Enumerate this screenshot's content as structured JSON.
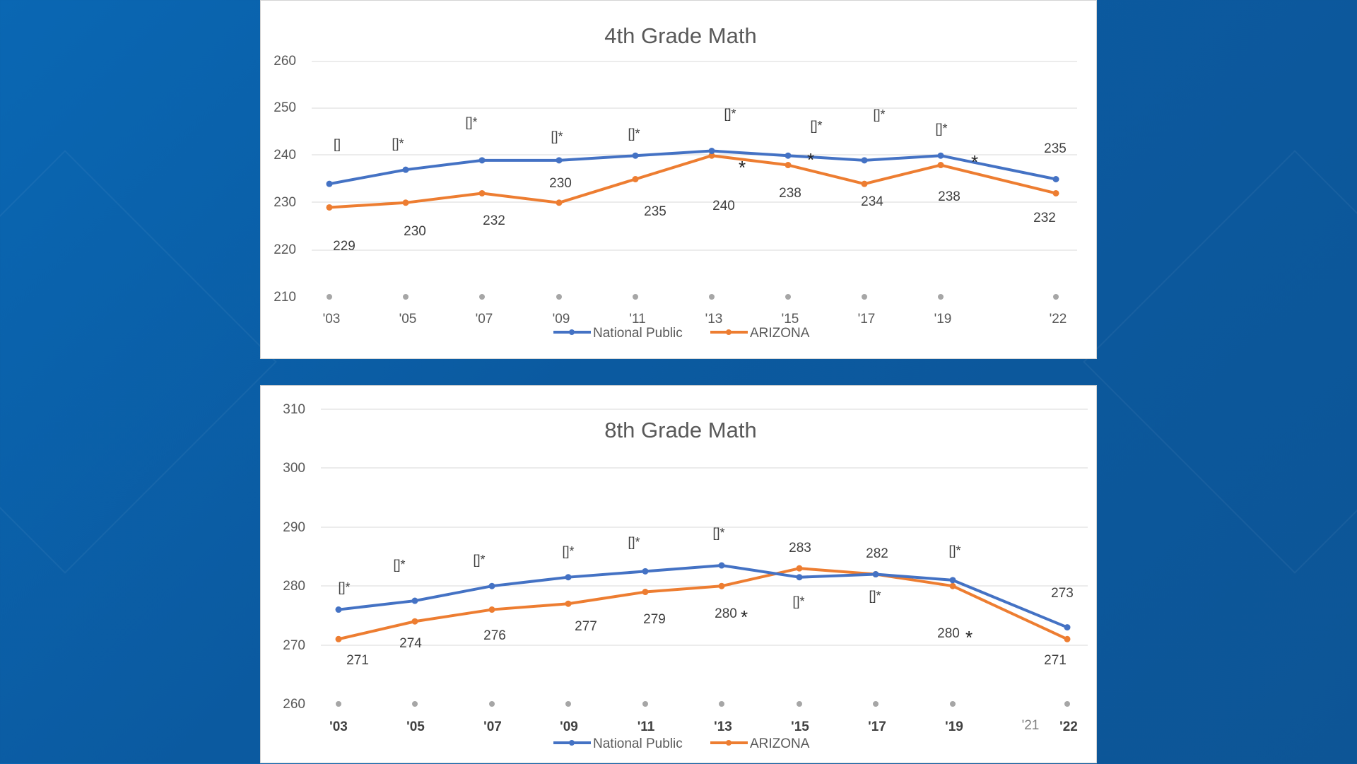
{
  "colors": {
    "national": "#4472c4",
    "arizona": "#ed7d31",
    "axis_text": "#595959",
    "grid": "#d9d9d9",
    "title": "#595959"
  },
  "chart_data": [
    {
      "type": "line",
      "title": "4th Grade Math",
      "x": [
        "'03",
        "'05",
        "'07",
        "'09",
        "'11",
        "'13",
        "'15",
        "'17",
        "'19",
        "'22"
      ],
      "y_ticks": [
        "260",
        "250",
        "240",
        "230",
        "220",
        "210"
      ],
      "ylim": [
        210,
        260
      ],
      "series": [
        {
          "name": "National Public",
          "values": [
            234,
            237,
            239,
            239,
            240,
            241,
            240,
            239,
            240,
            235
          ]
        },
        {
          "name": "ARIZONA",
          "values": [
            229,
            230,
            232,
            230,
            235,
            240,
            238,
            234,
            238,
            232
          ]
        }
      ],
      "data_labels": [
        "229",
        "230",
        "232",
        "230",
        "235",
        "240",
        "238",
        "234",
        "238",
        "232",
        "235"
      ],
      "marker_labels": [
        "[]",
        "[]*",
        "[]*",
        "[]*",
        "[]*",
        "[]*",
        "[]*",
        "[]*",
        "[]*"
      ],
      "asterisks": [
        "*",
        "*",
        "*"
      ],
      "legend": "bottom",
      "grid": true
    },
    {
      "type": "line",
      "title": "8th Grade Math",
      "x": [
        "'03",
        "'05",
        "'07",
        "'09",
        "'11",
        "'13",
        "'15",
        "'17",
        "'19",
        "'21",
        "'22"
      ],
      "y_ticks": [
        "310",
        "300",
        "290",
        "280",
        "270",
        "260"
      ],
      "ylim": [
        260,
        310
      ],
      "series": [
        {
          "name": "National Public",
          "values": [
            276,
            277.5,
            280,
            281.5,
            282.5,
            283.5,
            281.5,
            282,
            281,
            null,
            273
          ]
        },
        {
          "name": "ARIZONA",
          "values": [
            271,
            274,
            276,
            277,
            279,
            280,
            283,
            282,
            280,
            null,
            271
          ]
        }
      ],
      "data_labels": [
        "271",
        "274",
        "276",
        "277",
        "279",
        "280",
        "283",
        "282",
        "280",
        "271",
        "273"
      ],
      "marker_labels": [
        "[]*",
        "[]*",
        "[]*",
        "[]*",
        "[]*",
        "[]*",
        "[]*",
        "[]*",
        "[]*"
      ],
      "asterisks": [
        "*",
        "*"
      ],
      "legend": "bottom",
      "grid": true
    }
  ]
}
